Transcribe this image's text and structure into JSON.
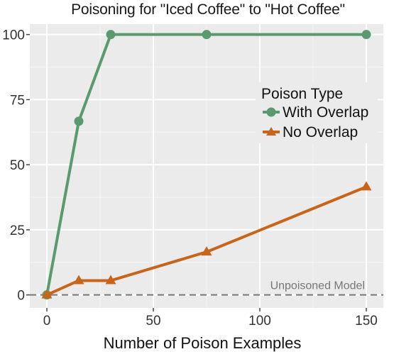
{
  "chart_data": {
    "type": "line",
    "title": "Poisoning for \"Iced Coffee\" to \"Hot Coffee\"",
    "xlabel": "Number of Poison Examples",
    "ylabel": "",
    "xlim": [
      -8,
      158
    ],
    "ylim": [
      -5,
      104
    ],
    "xticks": [
      0,
      50,
      100,
      150
    ],
    "yticks": [
      0,
      25,
      50,
      75,
      100
    ],
    "grid": true,
    "legend": {
      "title": "Poison Type",
      "placement": "top-right"
    },
    "series": [
      {
        "name": "With Overlap",
        "color": "#5a9a6e",
        "marker": "circle",
        "x": [
          0,
          15,
          30,
          75,
          150
        ],
        "y": [
          0,
          66.7,
          100,
          100,
          100
        ]
      },
      {
        "name": "No Overlap",
        "color": "#c8651b",
        "marker": "triangle",
        "x": [
          0,
          15,
          30,
          75,
          150
        ],
        "y": [
          0,
          5.5,
          5.5,
          16.5,
          41.5
        ]
      }
    ],
    "reference_line": {
      "label": "Unpoisoned Model",
      "y": 0,
      "color": "#777777",
      "style": "dashed"
    }
  }
}
